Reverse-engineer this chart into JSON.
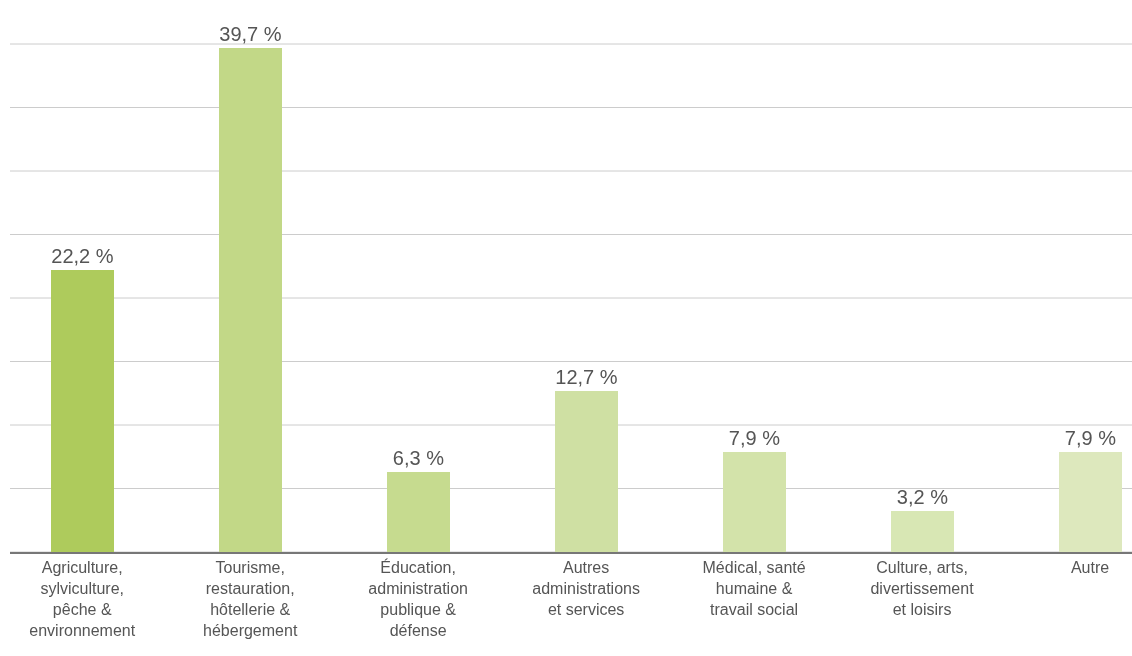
{
  "chart_data": {
    "type": "bar",
    "categories": [
      "Agriculture, sylviculture, pêche & environnement",
      "Tourisme, restauration, hôtellerie & hébergement",
      "Éducation, administration publique & défense",
      "Autres administrations et services",
      "Médical, santé humaine & travail social",
      "Culture, arts, divertissement et loisirs",
      "Autre"
    ],
    "values": [
      22.2,
      39.7,
      6.3,
      12.7,
      7.9,
      3.2,
      7.9
    ],
    "value_labels": [
      "22,2 %",
      "39,7 %",
      "6,3 %",
      "12,7 %",
      "7,9 %",
      "3,2 %",
      "7,9 %"
    ],
    "colors": [
      "#aecb5c",
      "#c2d887",
      "#c6db8f",
      "#cfe0a3",
      "#d3e3aa",
      "#d8e7b4",
      "#dde8bd"
    ],
    "ylim": [
      0,
      40
    ],
    "yticks": [
      {
        "value": 0,
        "label": null
      },
      {
        "value": 5,
        "label": null
      },
      {
        "value": 10,
        "label": null
      },
      {
        "value": 15,
        "label": null
      },
      {
        "value": 20,
        "label": null
      },
      {
        "value": 25,
        "label": null
      },
      {
        "value": 30,
        "label": null
      },
      {
        "value": 35,
        "label": null
      },
      {
        "value": 40,
        "label": null
      }
    ],
    "grid": "y",
    "tick_labels": "x"
  }
}
